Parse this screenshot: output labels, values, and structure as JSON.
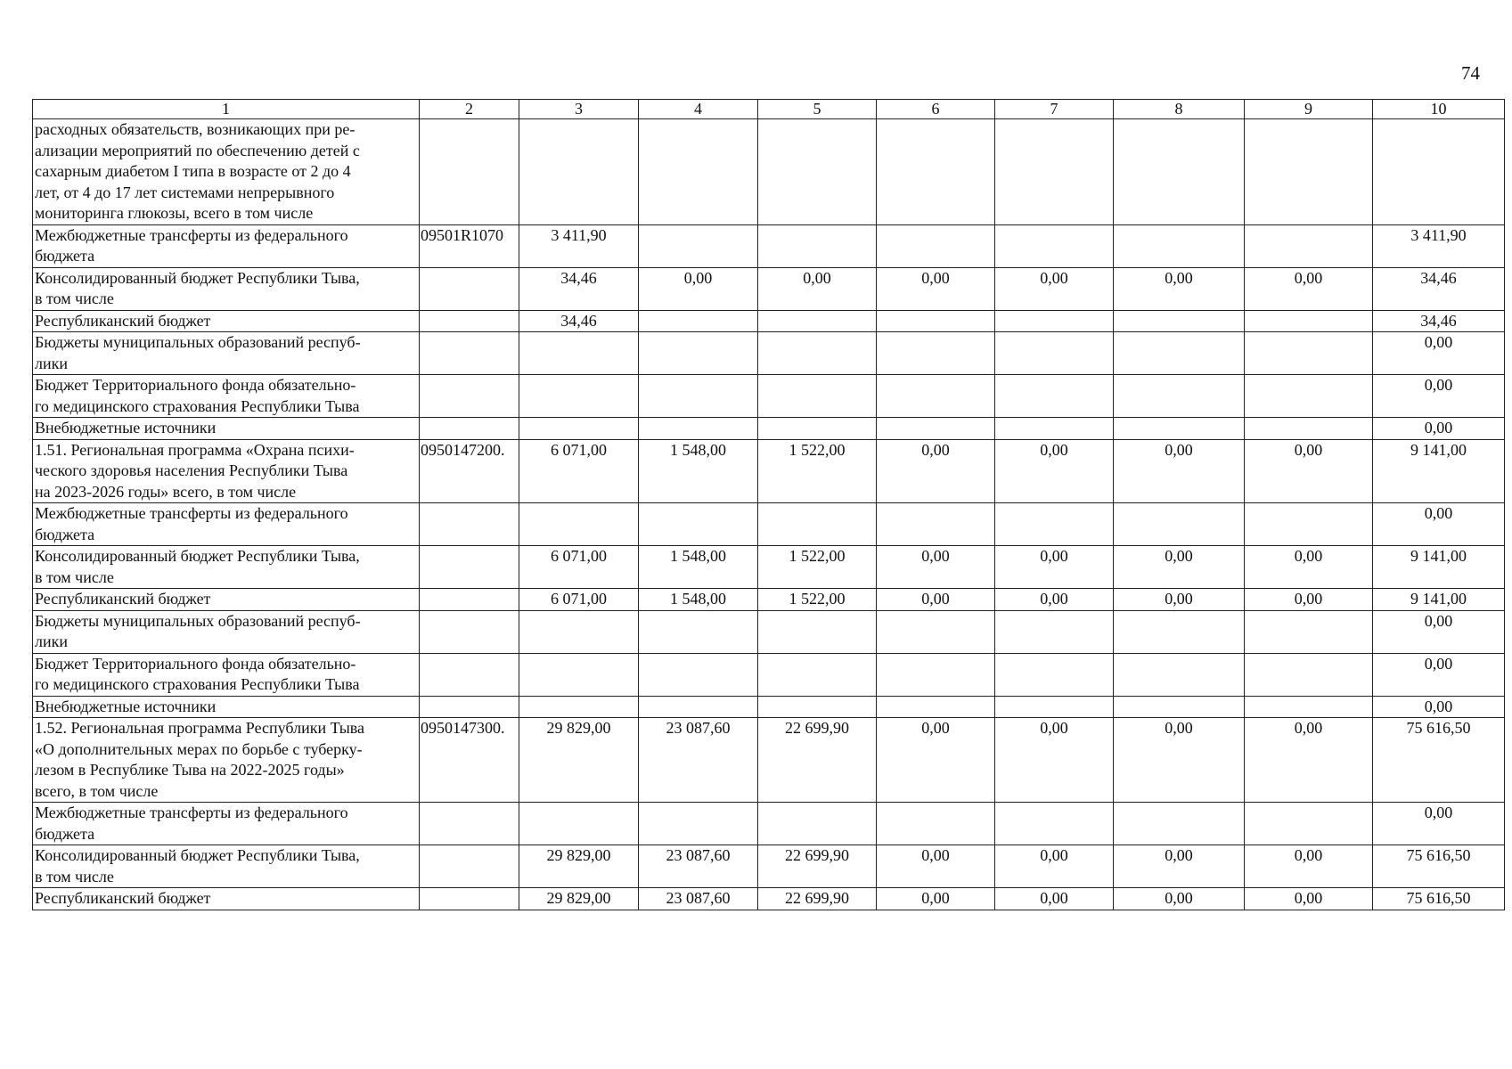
{
  "page_number": "74",
  "columns": [
    "1",
    "2",
    "3",
    "4",
    "5",
    "6",
    "7",
    "8",
    "9",
    "10"
  ],
  "rows": [
    {
      "name": "расходных обязательств, возникающих при ре-\nализации мероприятий по обеспечению детей с\nсахарным диабетом I типа в возрасте от 2 до 4\nлет, от 4 до 17 лет системами непрерывного\nмониторинга глюкозы, всего в том числе",
      "code": "",
      "values": [
        "",
        "",
        "",
        "",
        "",
        "",
        "",
        ""
      ]
    },
    {
      "name": "Межбюджетные трансферты из федерального\nбюджета",
      "code": "09501R1070",
      "values": [
        "3 411,90",
        "",
        "",
        "",
        "",
        "",
        "",
        "3 411,90"
      ]
    },
    {
      "name": "Консолидированный бюджет Республики Тыва,\nв том числе",
      "code": "",
      "values": [
        "34,46",
        "0,00",
        "0,00",
        "0,00",
        "0,00",
        "0,00",
        "0,00",
        "34,46"
      ]
    },
    {
      "name": "Республиканский бюджет",
      "code": "",
      "values": [
        "34,46",
        "",
        "",
        "",
        "",
        "",
        "",
        "34,46"
      ]
    },
    {
      "name": "Бюджеты муниципальных образований респуб-\nлики",
      "code": "",
      "values": [
        "",
        "",
        "",
        "",
        "",
        "",
        "",
        "0,00"
      ]
    },
    {
      "name": "Бюджет Территориального фонда обязательно-\nго медицинского страхования Республики Тыва",
      "code": "",
      "values": [
        "",
        "",
        "",
        "",
        "",
        "",
        "",
        "0,00"
      ]
    },
    {
      "name": "Внебюджетные источники",
      "code": "",
      "values": [
        "",
        "",
        "",
        "",
        "",
        "",
        "",
        "0,00"
      ]
    },
    {
      "name": "1.51. Региональная программа «Охрана психи-\nческого здоровья населения Республики Тыва\nна 2023-2026 годы» всего, в том числе",
      "code": "0950147200.",
      "values": [
        "6 071,00",
        "1 548,00",
        "1 522,00",
        "0,00",
        "0,00",
        "0,00",
        "0,00",
        "9 141,00"
      ]
    },
    {
      "name": "Межбюджетные трансферты из федерального\nбюджета",
      "code": "",
      "values": [
        "",
        "",
        "",
        "",
        "",
        "",
        "",
        "0,00"
      ]
    },
    {
      "name": "Консолидированный бюджет Республики Тыва,\nв том числе",
      "code": "",
      "values": [
        "6 071,00",
        "1 548,00",
        "1 522,00",
        "0,00",
        "0,00",
        "0,00",
        "0,00",
        "9 141,00"
      ]
    },
    {
      "name": "Республиканский бюджет",
      "code": "",
      "values": [
        "6 071,00",
        "1 548,00",
        "1 522,00",
        "0,00",
        "0,00",
        "0,00",
        "0,00",
        "9 141,00"
      ]
    },
    {
      "name": "Бюджеты муниципальных образований респуб-\nлики",
      "code": "",
      "values": [
        "",
        "",
        "",
        "",
        "",
        "",
        "",
        "0,00"
      ]
    },
    {
      "name": "Бюджет Территориального фонда обязательно-\nго медицинского страхования Республики Тыва",
      "code": "",
      "values": [
        "",
        "",
        "",
        "",
        "",
        "",
        "",
        "0,00"
      ]
    },
    {
      "name": "Внебюджетные источники",
      "code": "",
      "values": [
        "",
        "",
        "",
        "",
        "",
        "",
        "",
        "0,00"
      ]
    },
    {
      "name": "1.52. Региональная программа Республики Тыва\n«О дополнительных мерах по борьбе с туберку-\nлезом в Республике Тыва на 2022-2025 годы»\nвсего, в том числе",
      "code": "0950147300.",
      "values": [
        "29 829,00",
        "23 087,60",
        "22 699,90",
        "0,00",
        "0,00",
        "0,00",
        "0,00",
        "75 616,50"
      ]
    },
    {
      "name": "Межбюджетные трансферты из федерального\nбюджета",
      "code": "",
      "values": [
        "",
        "",
        "",
        "",
        "",
        "",
        "",
        "0,00"
      ]
    },
    {
      "name": "Консолидированный бюджет Республики Тыва,\nв том числе",
      "code": "",
      "values": [
        "29 829,00",
        "23 087,60",
        "22 699,90",
        "0,00",
        "0,00",
        "0,00",
        "0,00",
        "75 616,50"
      ]
    },
    {
      "name": "Республиканский бюджет",
      "code": "",
      "values": [
        "29 829,00",
        "23 087,60",
        "22 699,90",
        "0,00",
        "0,00",
        "0,00",
        "0,00",
        "75 616,50"
      ]
    }
  ]
}
